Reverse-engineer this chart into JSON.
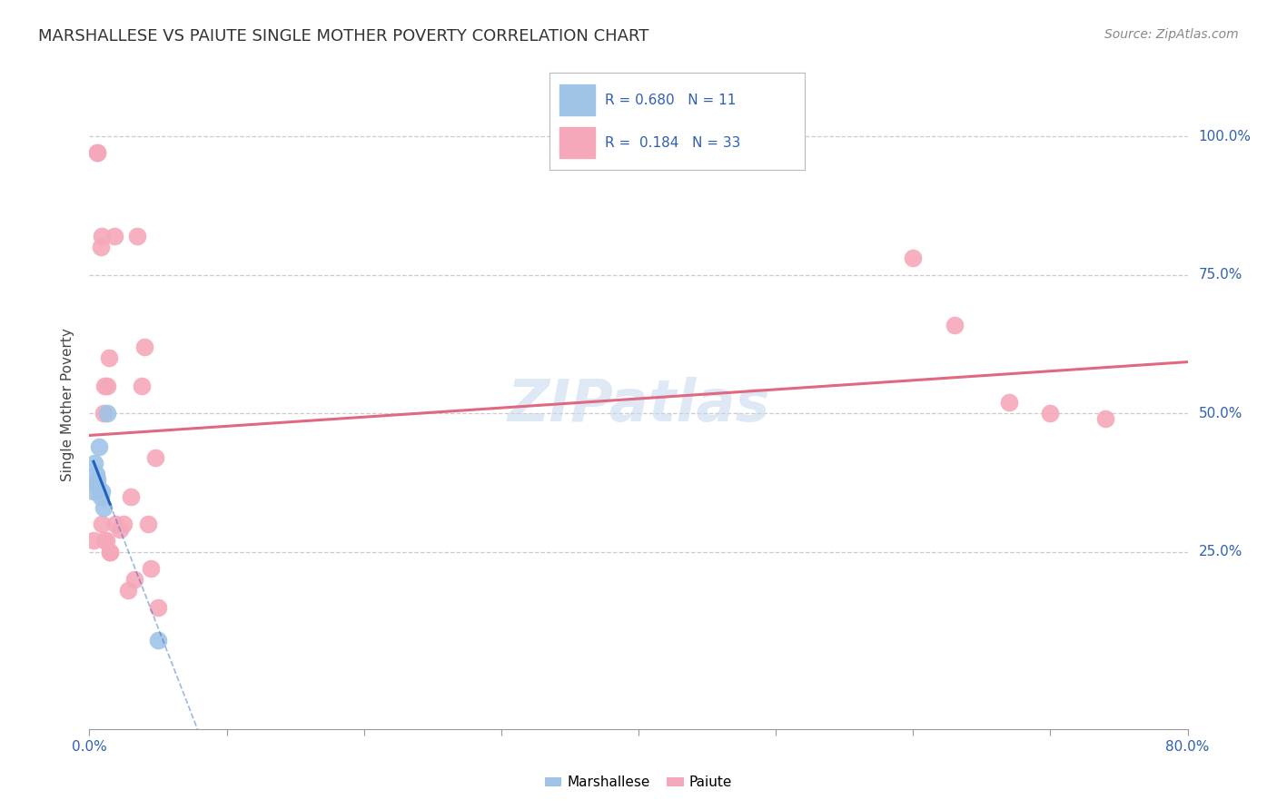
{
  "title": "MARSHALLESE VS PAIUTE SINGLE MOTHER POVERTY CORRELATION CHART",
  "source": "Source: ZipAtlas.com",
  "ylabel": "Single Mother Poverty",
  "ytick_labels": [
    "100.0%",
    "75.0%",
    "50.0%",
    "25.0%"
  ],
  "ytick_values": [
    1.0,
    0.75,
    0.5,
    0.25
  ],
  "xlim": [
    0.0,
    0.8
  ],
  "ylim": [
    -0.07,
    1.1
  ],
  "marshallese_R": 0.68,
  "marshallese_N": 11,
  "paiute_R": 0.184,
  "paiute_N": 33,
  "marshallese_color": "#a0c4e8",
  "paiute_color": "#f5a8ba",
  "marshallese_line_color": "#2060c0",
  "paiute_line_color": "#e06880",
  "background_color": "#ffffff",
  "grid_color": "#cccccc",
  "axis_label_color": "#3060b0",
  "title_color": "#333333",
  "source_color": "#888888",
  "marsh_x": [
    0.003,
    0.004,
    0.005,
    0.006,
    0.006,
    0.007,
    0.008,
    0.009,
    0.01,
    0.013,
    0.05
  ],
  "marsh_y": [
    0.36,
    0.41,
    0.39,
    0.38,
    0.37,
    0.44,
    0.35,
    0.36,
    0.33,
    0.5,
    0.09
  ],
  "paiute_x": [
    0.003,
    0.006,
    0.006,
    0.008,
    0.009,
    0.009,
    0.01,
    0.011,
    0.011,
    0.012,
    0.013,
    0.014,
    0.015,
    0.015,
    0.018,
    0.019,
    0.022,
    0.025,
    0.028,
    0.03,
    0.033,
    0.035,
    0.038,
    0.04,
    0.043,
    0.045,
    0.048,
    0.05,
    0.6,
    0.63,
    0.67,
    0.7,
    0.74
  ],
  "paiute_y": [
    0.27,
    0.97,
    0.97,
    0.8,
    0.82,
    0.3,
    0.5,
    0.55,
    0.27,
    0.27,
    0.55,
    0.6,
    0.25,
    0.25,
    0.82,
    0.3,
    0.29,
    0.3,
    0.18,
    0.35,
    0.2,
    0.82,
    0.55,
    0.62,
    0.3,
    0.22,
    0.42,
    0.15,
    0.78,
    0.66,
    0.52,
    0.5,
    0.49
  ]
}
